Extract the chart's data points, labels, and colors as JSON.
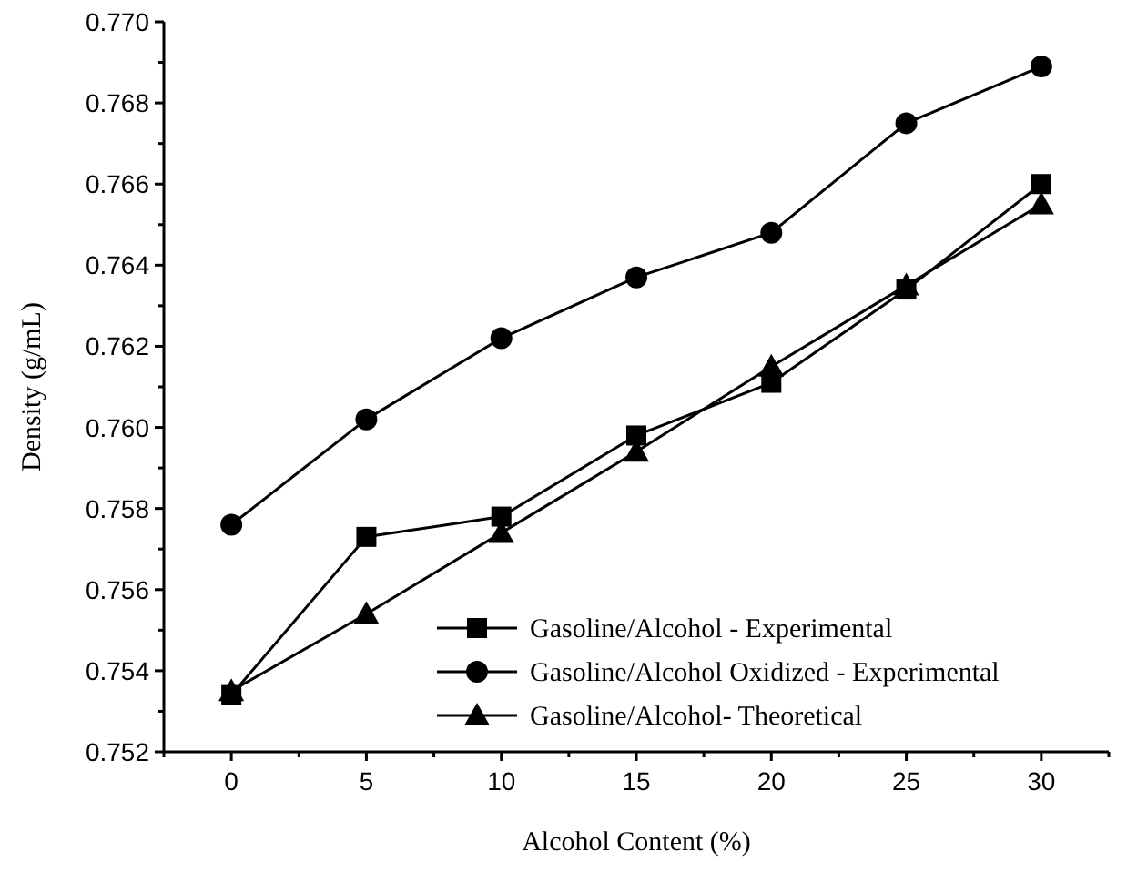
{
  "chart_data": {
    "type": "line",
    "xlabel": "Alcohol Content (%)",
    "ylabel": "Density (g/mL)",
    "x": [
      0,
      5,
      10,
      15,
      20,
      25,
      30
    ],
    "series": [
      {
        "name": "Gasoline/Alcohol - Experimental",
        "color": "#000000",
        "marker": "square",
        "values": [
          0.7534,
          0.7573,
          0.7578,
          0.7598,
          0.7611,
          0.7634,
          0.766
        ]
      },
      {
        "name": "Gasoline/Alcohol Oxidized - Experimental",
        "color": "#000000",
        "marker": "circle",
        "values": [
          0.7576,
          0.7602,
          0.7622,
          0.7637,
          0.7648,
          0.7675,
          0.7689
        ]
      },
      {
        "name": "Gasoline/Alcohol- Theoretical",
        "color": "#000000",
        "marker": "triangle",
        "values": [
          0.7535,
          0.7554,
          0.7574,
          0.7594,
          0.7615,
          0.7635,
          0.7655
        ]
      }
    ],
    "xlim": [
      -2.5,
      32.5
    ],
    "xticks": [
      {
        "value": -2.5,
        "label": null
      },
      0,
      {
        "value": 2.5,
        "label": null
      },
      5,
      {
        "value": 7.5,
        "label": null
      },
      10,
      {
        "value": 12.5,
        "label": null
      },
      15,
      {
        "value": 17.5,
        "label": null
      },
      20,
      {
        "value": 22.5,
        "label": null
      },
      25,
      {
        "value": 27.5,
        "label": null
      },
      30,
      {
        "value": 32.5,
        "label": null
      }
    ],
    "ylim": [
      0.752,
      0.77
    ],
    "yticks": [
      0.752,
      {
        "value": 0.753,
        "label": null
      },
      0.754,
      {
        "value": 0.755,
        "label": null
      },
      0.756,
      {
        "value": 0.757,
        "label": null
      },
      0.758,
      {
        "value": 0.759,
        "label": null
      },
      {
        "value": 0.76,
        "label": "0.760"
      },
      {
        "value": 0.761,
        "label": null
      },
      0.762,
      {
        "value": 0.763,
        "label": null
      },
      0.764,
      {
        "value": 0.765,
        "label": null
      },
      0.766,
      {
        "value": 0.767,
        "label": null
      },
      0.768,
      {
        "value": 0.769,
        "label": null
      },
      {
        "value": 0.77,
        "label": "0.770"
      }
    ],
    "legend": "bottom right",
    "line_style": "solid",
    "grid": false
  }
}
